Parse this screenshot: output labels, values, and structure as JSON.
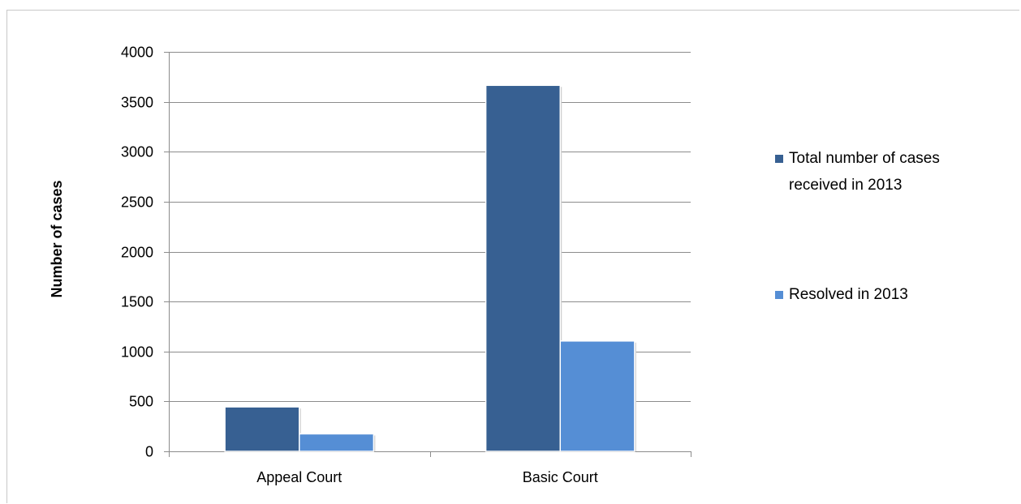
{
  "chart_data": {
    "type": "bar",
    "title": "",
    "xlabel": "",
    "ylabel": "Number of cases",
    "ylim": [
      0,
      4000
    ],
    "yticks": [
      0,
      500,
      1000,
      1500,
      2000,
      2500,
      3000,
      3500,
      4000
    ],
    "grid": true,
    "legend_position": "right",
    "categories": [
      "Appeal Court",
      "Basic Court"
    ],
    "series": [
      {
        "name": "Total number of cases received in 2013",
        "legend_lines": [
          "Total number of cases",
          "received in 2013"
        ],
        "color": "#376092",
        "values": [
          445,
          3665
        ]
      },
      {
        "name": "Resolved in 2013",
        "legend_lines": [
          "Resolved in 2013"
        ],
        "color": "#558ED5",
        "values": [
          175,
          1105
        ]
      }
    ]
  }
}
